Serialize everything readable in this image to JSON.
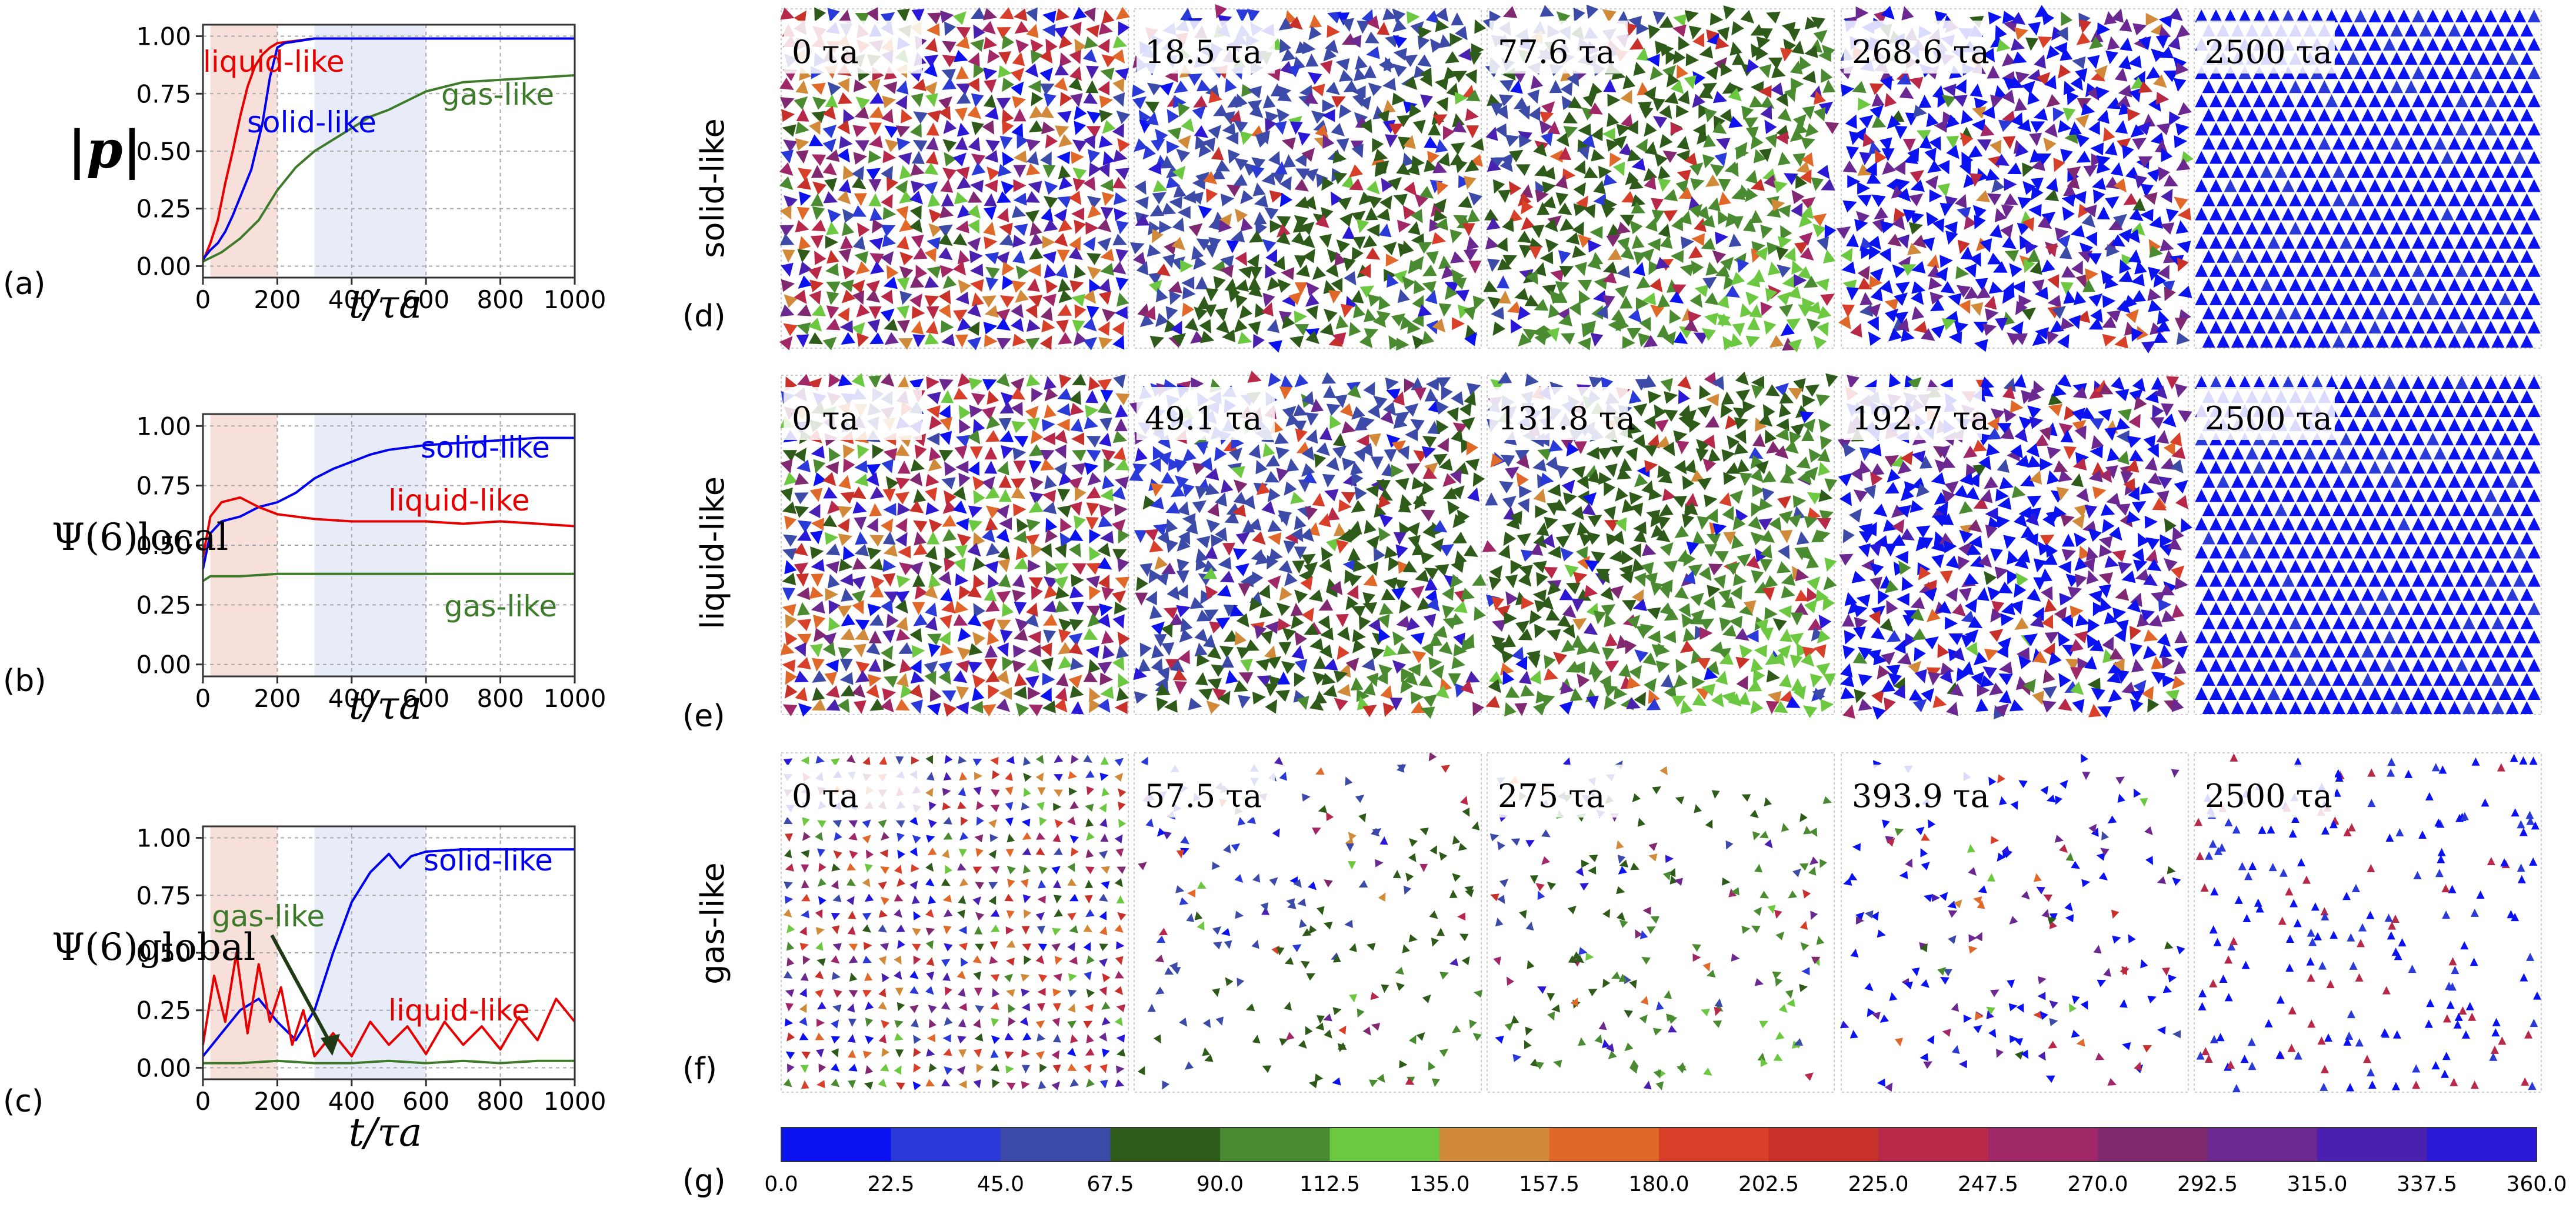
{
  "chart_data": [
    {
      "panel": "(a)",
      "type": "line",
      "ylabel": "|p|",
      "xlabel": "t/τa",
      "xlim": [
        0,
        1000
      ],
      "ylim": [
        0,
        1
      ],
      "xticks": [
        "0",
        "200",
        "400",
        "600",
        "800",
        "1000"
      ],
      "yticks": [
        "0.00",
        "0.25",
        "0.50",
        "0.75",
        "1.00"
      ],
      "grid": true,
      "shaded_regions": [
        {
          "x_start": 20,
          "x_end": 200,
          "color": "#f6d5cd"
        },
        {
          "x_start": 300,
          "x_end": 600,
          "color": "#dfe6f6"
        }
      ],
      "series": [
        {
          "name": "liquid-like",
          "color": "#e60000",
          "x": [
            0,
            20,
            40,
            60,
            80,
            100,
            120,
            140,
            160,
            180,
            200,
            250,
            300,
            400,
            600,
            800,
            1000
          ],
          "y": [
            0.02,
            0.1,
            0.2,
            0.36,
            0.5,
            0.65,
            0.78,
            0.87,
            0.92,
            0.95,
            0.97,
            0.98,
            0.99,
            0.99,
            0.99,
            0.99,
            0.99
          ]
        },
        {
          "name": "solid-like",
          "color": "#0000ee",
          "x": [
            0,
            20,
            40,
            60,
            80,
            100,
            130,
            160,
            180,
            200,
            220,
            260,
            300,
            400,
            600,
            800,
            1000
          ],
          "y": [
            0.03,
            0.07,
            0.1,
            0.15,
            0.22,
            0.3,
            0.42,
            0.62,
            0.82,
            0.95,
            0.97,
            0.98,
            0.99,
            0.99,
            0.99,
            0.99,
            0.99
          ]
        },
        {
          "name": "gas-like",
          "color": "#3d7a2a",
          "x": [
            0,
            50,
            100,
            150,
            200,
            250,
            300,
            350,
            400,
            450,
            500,
            550,
            600,
            650,
            700,
            800,
            900,
            1000
          ],
          "y": [
            0.02,
            0.06,
            0.12,
            0.2,
            0.33,
            0.43,
            0.5,
            0.55,
            0.6,
            0.65,
            0.68,
            0.72,
            0.76,
            0.78,
            0.8,
            0.81,
            0.82,
            0.83
          ]
        }
      ],
      "annotations": [
        "liquid-like",
        "solid-like",
        "gas-like"
      ]
    },
    {
      "panel": "(b)",
      "type": "line",
      "ylabel": "Ψ(6)local",
      "xlabel": "t/τa",
      "xlim": [
        0,
        1000
      ],
      "ylim": [
        0,
        1
      ],
      "xticks": [
        "0",
        "200",
        "400",
        "600",
        "800",
        "1000"
      ],
      "yticks": [
        "0.00",
        "0.25",
        "0.50",
        "0.75",
        "1.00"
      ],
      "grid": true,
      "shaded_regions": [
        {
          "x_start": 20,
          "x_end": 200,
          "color": "#f6d5cd"
        },
        {
          "x_start": 300,
          "x_end": 600,
          "color": "#dfe6f6"
        }
      ],
      "series": [
        {
          "name": "solid-like",
          "color": "#0000ee",
          "x": [
            0,
            20,
            50,
            100,
            150,
            200,
            250,
            300,
            350,
            400,
            450,
            500,
            600,
            700,
            800,
            900,
            1000
          ],
          "y": [
            0.4,
            0.55,
            0.6,
            0.62,
            0.66,
            0.68,
            0.72,
            0.78,
            0.82,
            0.85,
            0.88,
            0.9,
            0.92,
            0.93,
            0.94,
            0.95,
            0.95
          ]
        },
        {
          "name": "liquid-like",
          "color": "#e60000",
          "x": [
            0,
            20,
            50,
            100,
            150,
            200,
            300,
            400,
            500,
            600,
            700,
            800,
            900,
            1000
          ],
          "y": [
            0.45,
            0.62,
            0.68,
            0.7,
            0.66,
            0.63,
            0.61,
            0.6,
            0.6,
            0.6,
            0.59,
            0.6,
            0.59,
            0.58
          ]
        },
        {
          "name": "gas-like",
          "color": "#3d7a2a",
          "x": [
            0,
            20,
            100,
            200,
            400,
            600,
            800,
            1000
          ],
          "y": [
            0.35,
            0.37,
            0.37,
            0.38,
            0.38,
            0.38,
            0.38,
            0.38
          ]
        }
      ],
      "annotations": [
        "solid-like",
        "liquid-like",
        "gas-like"
      ]
    },
    {
      "panel": "(c)",
      "type": "line",
      "ylabel": "Ψ(6)global",
      "xlabel": "t/τa",
      "xlim": [
        0,
        1000
      ],
      "ylim": [
        0,
        1
      ],
      "xticks": [
        "0",
        "200",
        "400",
        "600",
        "800",
        "1000"
      ],
      "yticks": [
        "0.00",
        "0.25",
        "0.50",
        "0.75",
        "1.00"
      ],
      "grid": true,
      "shaded_regions": [
        {
          "x_start": 20,
          "x_end": 200,
          "color": "#f6d5cd"
        },
        {
          "x_start": 300,
          "x_end": 600,
          "color": "#dfe6f6"
        }
      ],
      "series": [
        {
          "name": "solid-like",
          "color": "#0000ee",
          "x": [
            0,
            50,
            100,
            150,
            200,
            250,
            300,
            350,
            400,
            450,
            500,
            530,
            560,
            600,
            700,
            800,
            900,
            1000
          ],
          "y": [
            0.05,
            0.15,
            0.25,
            0.3,
            0.2,
            0.12,
            0.25,
            0.5,
            0.72,
            0.85,
            0.93,
            0.87,
            0.92,
            0.94,
            0.95,
            0.95,
            0.95,
            0.95
          ]
        },
        {
          "name": "liquid-like",
          "color": "#e60000",
          "x": [
            0,
            30,
            60,
            90,
            120,
            150,
            180,
            210,
            240,
            270,
            300,
            350,
            400,
            450,
            500,
            550,
            600,
            650,
            700,
            750,
            800,
            850,
            900,
            950,
            1000
          ],
          "y": [
            0.1,
            0.4,
            0.2,
            0.5,
            0.15,
            0.45,
            0.2,
            0.35,
            0.1,
            0.25,
            0.05,
            0.15,
            0.05,
            0.2,
            0.1,
            0.18,
            0.06,
            0.2,
            0.1,
            0.18,
            0.08,
            0.22,
            0.12,
            0.3,
            0.2
          ]
        },
        {
          "name": "gas-like",
          "color": "#3d7a2a",
          "x": [
            0,
            100,
            200,
            300,
            400,
            500,
            600,
            700,
            800,
            900,
            1000
          ],
          "y": [
            0.02,
            0.02,
            0.03,
            0.02,
            0.02,
            0.03,
            0.02,
            0.03,
            0.02,
            0.03,
            0.03
          ]
        }
      ],
      "annotations": [
        "solid-like",
        "gas-like",
        "liquid-like"
      ]
    },
    {
      "panel": "(d)-(f)",
      "type": "heatmap",
      "description_rows": [
        "solid-like",
        "liquid-like",
        "gas-like"
      ],
      "row_panel_labels": [
        "(d)",
        "(e)",
        "(f)"
      ],
      "snapshot_times": [
        [
          "0 τa",
          "18.5 τa",
          "77.6 τa",
          "268.6 τa",
          "2500 τa"
        ],
        [
          "0 τa",
          "49.1 τa",
          "131.8 τa",
          "192.7 τa",
          "2500 τa"
        ],
        [
          "0 τa",
          "57.5 τa",
          "275 τa",
          "393.9 τa",
          "2500 τa"
        ]
      ]
    },
    {
      "panel": "(g)",
      "type": "colorbar",
      "ticks": [
        "0.0",
        "22.5",
        "45.0",
        "67.5",
        "90.0",
        "112.5",
        "135.0",
        "157.5",
        "180.0",
        "202.5",
        "225.0",
        "247.5",
        "270.0",
        "292.5",
        "315.0",
        "337.5",
        "360.0"
      ],
      "colors": [
        "#0a12f0",
        "#2a3ad8",
        "#3c4aa8",
        "#2e5a1a",
        "#4a8a30",
        "#6cc840",
        "#d08a3a",
        "#e0692a",
        "#d8402a",
        "#c8302a",
        "#b82848",
        "#a02868",
        "#802870",
        "#6a2890",
        "#4a20b0",
        "#2a18d8"
      ]
    }
  ]
}
